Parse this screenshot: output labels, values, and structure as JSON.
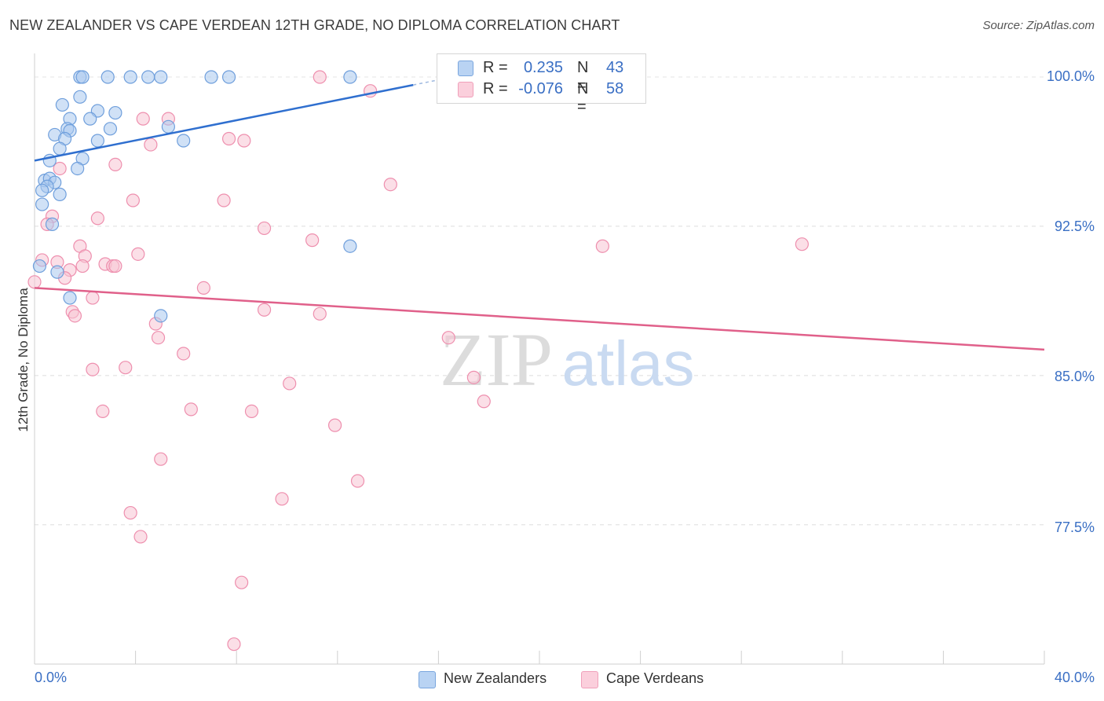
{
  "header": {
    "title": "NEW ZEALANDER VS CAPE VERDEAN 12TH GRADE, NO DIPLOMA CORRELATION CHART",
    "source": "Source: ZipAtlas.com"
  },
  "watermark": {
    "zip": "ZIP",
    "atlas": "atlas"
  },
  "legend_top": {
    "rows": [
      {
        "r_label": "R =",
        "r_value": "0.235",
        "n_label": "N =",
        "n_value": "43",
        "color": "#9cbfea"
      },
      {
        "r_label": "R =",
        "r_value": "-0.076",
        "n_label": "N =",
        "n_value": "58",
        "color": "#f5b3c8"
      }
    ]
  },
  "legend_bottom": {
    "items": [
      {
        "label": "New Zealanders",
        "color": "#9cbfea"
      },
      {
        "label": "Cape Verdeans",
        "color": "#f5b3c8"
      }
    ]
  },
  "chart_data": {
    "type": "scatter",
    "title": "NEW ZEALANDER VS CAPE VERDEAN 12TH GRADE, NO DIPLOMA CORRELATION CHART",
    "xlabel": "",
    "ylabel": "12th Grade, No Diploma",
    "xlim": [
      0,
      40
    ],
    "ylim": [
      70.5,
      101.5
    ],
    "x_tick_labels": [
      "0.0%",
      "40.0%"
    ],
    "y_ticks": [
      100.0,
      92.5,
      85.0,
      77.5
    ],
    "y_tick_labels": [
      "100.0%",
      "92.5%",
      "85.0%",
      "77.5%"
    ],
    "grid": true,
    "legend_position": "top-center",
    "series": [
      {
        "name": "New Zealanders",
        "color": "#6f9fdc",
        "fill": "#a9c8ef",
        "r": 0.235,
        "n": 43,
        "trend": {
          "x": [
            0,
            15
          ],
          "y": [
            95.8,
            99.6
          ],
          "dashed_to_x": 16,
          "line_color": "#2f6fcf"
        },
        "points": [
          [
            1.8,
            100.0
          ],
          [
            1.9,
            100.0
          ],
          [
            2.9,
            100.0
          ],
          [
            3.8,
            100.0
          ],
          [
            4.5,
            100.0
          ],
          [
            5.0,
            100.0
          ],
          [
            7.0,
            100.0
          ],
          [
            7.7,
            100.0
          ],
          [
            12.5,
            100.0
          ],
          [
            1.8,
            99.0
          ],
          [
            1.1,
            98.6
          ],
          [
            2.5,
            98.3
          ],
          [
            3.2,
            98.2
          ],
          [
            1.4,
            97.9
          ],
          [
            2.2,
            97.9
          ],
          [
            3.0,
            97.4
          ],
          [
            1.3,
            97.4
          ],
          [
            5.3,
            97.5
          ],
          [
            0.8,
            97.1
          ],
          [
            1.4,
            97.3
          ],
          [
            1.2,
            96.9
          ],
          [
            2.5,
            96.8
          ],
          [
            5.9,
            96.8
          ],
          [
            1.0,
            96.4
          ],
          [
            1.9,
            95.9
          ],
          [
            0.6,
            95.8
          ],
          [
            1.7,
            95.4
          ],
          [
            0.4,
            94.8
          ],
          [
            0.6,
            94.9
          ],
          [
            0.8,
            94.7
          ],
          [
            0.5,
            94.5
          ],
          [
            0.3,
            94.3
          ],
          [
            1.0,
            94.1
          ],
          [
            0.3,
            93.6
          ],
          [
            0.7,
            92.6
          ],
          [
            12.5,
            91.5
          ],
          [
            0.2,
            90.5
          ],
          [
            0.9,
            90.2
          ],
          [
            1.4,
            88.9
          ],
          [
            5.0,
            88.0
          ]
        ]
      },
      {
        "name": "Cape Verdeans",
        "color": "#ee8fae",
        "fill": "#f8c4d4",
        "r": -0.076,
        "n": 58,
        "trend": {
          "x": [
            0,
            40
          ],
          "y": [
            89.4,
            86.3
          ],
          "line_color": "#e0608a"
        },
        "points": [
          [
            11.3,
            100.0
          ],
          [
            13.3,
            99.3
          ],
          [
            4.3,
            97.9
          ],
          [
            5.3,
            97.9
          ],
          [
            7.7,
            96.9
          ],
          [
            8.3,
            96.8
          ],
          [
            4.6,
            96.6
          ],
          [
            3.2,
            95.6
          ],
          [
            1.0,
            95.4
          ],
          [
            14.1,
            94.6
          ],
          [
            3.9,
            93.8
          ],
          [
            7.5,
            93.8
          ],
          [
            2.5,
            92.9
          ],
          [
            0.7,
            93.0
          ],
          [
            0.5,
            92.6
          ],
          [
            9.1,
            92.4
          ],
          [
            11.0,
            91.8
          ],
          [
            22.5,
            91.5
          ],
          [
            30.4,
            91.6
          ],
          [
            1.8,
            91.5
          ],
          [
            4.1,
            91.1
          ],
          [
            2.0,
            91.0
          ],
          [
            0.3,
            90.8
          ],
          [
            0.9,
            90.7
          ],
          [
            2.8,
            90.6
          ],
          [
            1.9,
            90.5
          ],
          [
            3.1,
            90.5
          ],
          [
            3.2,
            90.5
          ],
          [
            1.4,
            90.3
          ],
          [
            1.2,
            89.9
          ],
          [
            0.0,
            89.7
          ],
          [
            6.7,
            89.4
          ],
          [
            2.3,
            88.9
          ],
          [
            9.1,
            88.3
          ],
          [
            1.5,
            88.2
          ],
          [
            1.6,
            88.0
          ],
          [
            11.3,
            88.1
          ],
          [
            4.8,
            87.6
          ],
          [
            16.4,
            86.9
          ],
          [
            4.9,
            86.9
          ],
          [
            5.9,
            86.1
          ],
          [
            2.3,
            85.3
          ],
          [
            3.6,
            85.4
          ],
          [
            17.4,
            84.9
          ],
          [
            10.1,
            84.6
          ],
          [
            17.8,
            83.7
          ],
          [
            6.2,
            83.3
          ],
          [
            2.7,
            83.2
          ],
          [
            8.6,
            83.2
          ],
          [
            11.9,
            82.5
          ],
          [
            5.0,
            80.8
          ],
          [
            12.8,
            79.7
          ],
          [
            9.8,
            78.8
          ],
          [
            3.8,
            78.1
          ],
          [
            4.2,
            76.9
          ],
          [
            8.2,
            74.6
          ],
          [
            7.9,
            71.5
          ]
        ]
      }
    ]
  }
}
